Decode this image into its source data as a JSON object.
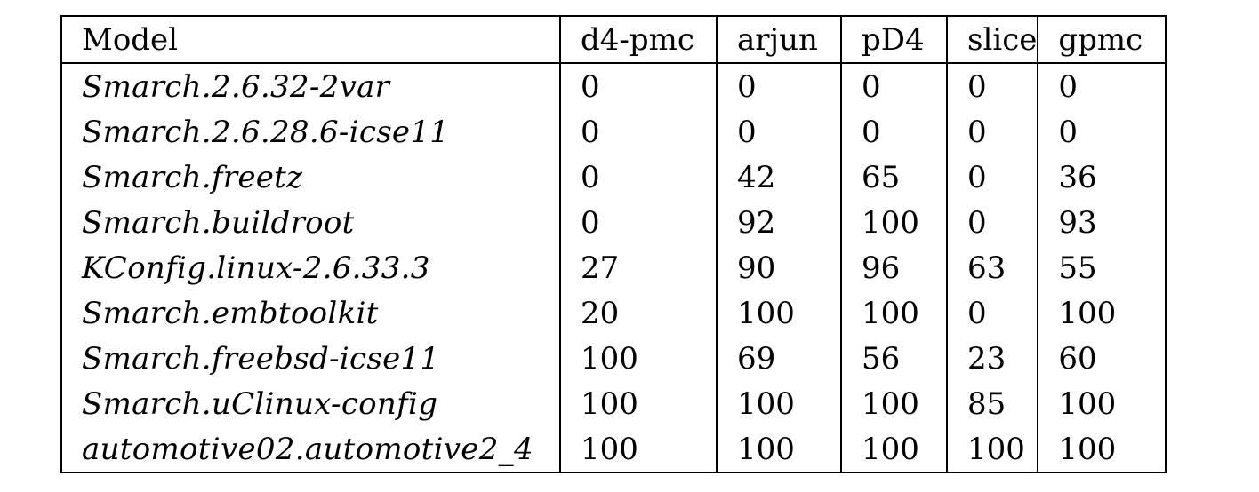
{
  "table": {
    "headers": [
      "Model",
      "d4-pmc",
      "arjun",
      "pD4",
      "slice",
      "gpmc"
    ],
    "rows": [
      {
        "model": "Smarch.2.6.32-2var",
        "values": [
          "0",
          "0",
          "0",
          "0",
          "0"
        ],
        "bold": []
      },
      {
        "model": "Smarch.2.6.28.6-icse11",
        "values": [
          "0",
          "0",
          "0",
          "0",
          "0"
        ],
        "bold": []
      },
      {
        "model": "Smarch.freetz",
        "values": [
          "0",
          "42",
          "65",
          "0",
          "36"
        ],
        "bold": [
          2
        ]
      },
      {
        "model": "Smarch.buildroot",
        "values": [
          "0",
          "92",
          "100",
          "0",
          "93"
        ],
        "bold": [
          2
        ]
      },
      {
        "model": "KConfig.linux-2.6.33.3",
        "values": [
          "27",
          "90",
          "96",
          "63",
          "55"
        ],
        "bold": [
          2
        ]
      },
      {
        "model": "Smarch.embtoolkit",
        "values": [
          "20",
          "100",
          "100",
          "0",
          "100"
        ],
        "bold": []
      },
      {
        "model": "Smarch.freebsd-icse11",
        "values": [
          "100",
          "69",
          "56",
          "23",
          "60"
        ],
        "bold": [
          0
        ]
      },
      {
        "model": "Smarch.uClinux-config",
        "values": [
          "100",
          "100",
          "100",
          "85",
          "100"
        ],
        "bold": []
      },
      {
        "model": "automotive02.automotive2_4",
        "values": [
          "100",
          "100",
          "100",
          "100",
          "100"
        ],
        "bold": []
      }
    ]
  }
}
